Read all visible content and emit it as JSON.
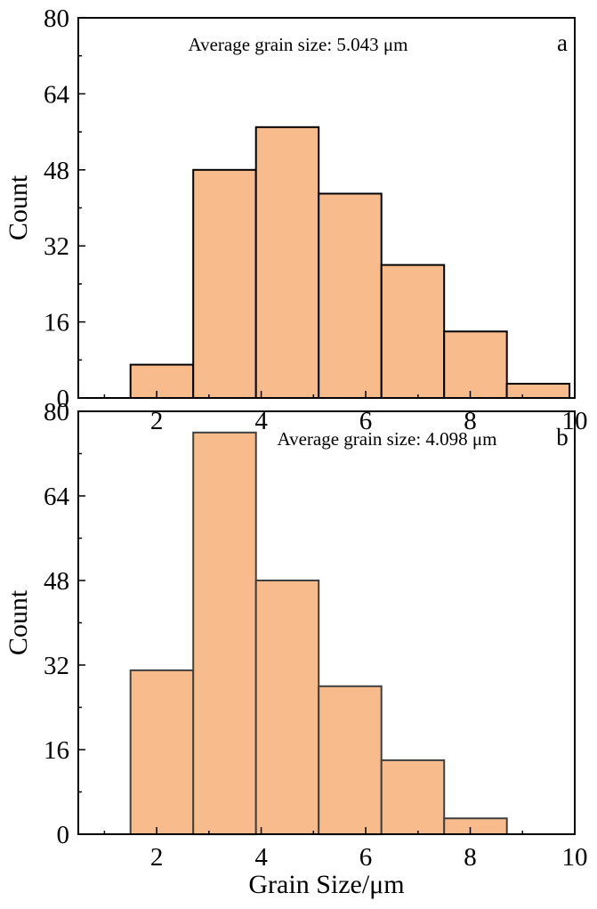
{
  "chart_data": [
    {
      "type": "bar",
      "panel_label": "a",
      "annotation": "Average grain size: 5.043 μm",
      "xlabel": "",
      "ylabel": "Count",
      "xlim": [
        0.5,
        10
      ],
      "ylim": [
        0,
        80
      ],
      "xticks": [
        "2",
        "4",
        "6",
        "8",
        "10"
      ],
      "yticks": [
        "0",
        "16",
        "32",
        "48",
        "64",
        "80"
      ],
      "bin_edges": [
        1.5,
        2.7,
        3.9,
        5.1,
        6.3,
        7.5,
        8.7,
        9.9
      ],
      "values": [
        7,
        48,
        57,
        43,
        28,
        14,
        3
      ],
      "bar_fill": "#F8BC8C",
      "bar_stroke": "#000000"
    },
    {
      "type": "bar",
      "panel_label": "b",
      "annotation": "Average grain size: 4.098 μm",
      "xlabel": "Grain Size/μm",
      "ylabel": "Count",
      "xlim": [
        0.5,
        10
      ],
      "ylim": [
        0,
        80
      ],
      "xticks": [
        "2",
        "4",
        "6",
        "8",
        "10"
      ],
      "yticks": [
        "0",
        "16",
        "32",
        "48",
        "64",
        "80"
      ],
      "bin_edges": [
        1.5,
        2.7,
        3.9,
        5.1,
        6.3,
        7.5,
        8.7
      ],
      "values": [
        31,
        76,
        48,
        28,
        14,
        3
      ],
      "bar_fill": "#F8BC8C",
      "bar_stroke": "#404040"
    }
  ]
}
